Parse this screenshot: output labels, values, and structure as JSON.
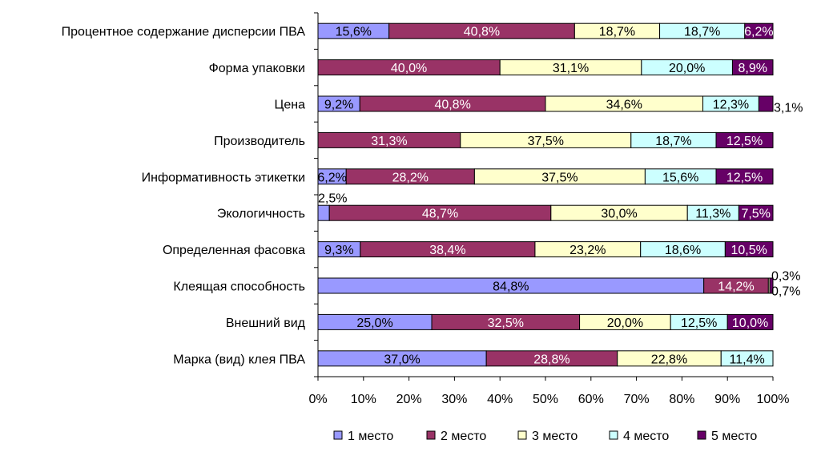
{
  "chart_data": {
    "type": "bar",
    "orientation": "horizontal",
    "stacked": "percent",
    "categories": [
      "Процентное содержание дисперсии ПВА",
      "Форма упаковки",
      "Цена",
      "Производитель",
      "Информативность этикетки",
      "Экологичность",
      "Определенная фасовка",
      "Клеящая способность",
      "Внешний вид",
      "Марка (вид) клея ПВА"
    ],
    "series": [
      {
        "name": "1 место",
        "color": "#9999FF",
        "values": [
          15.6,
          0,
          9.2,
          0,
          6.2,
          2.5,
          9.3,
          84.8,
          25.0,
          37.0
        ]
      },
      {
        "name": "2 место",
        "color": "#993366",
        "values": [
          40.8,
          40.0,
          40.8,
          31.3,
          28.2,
          48.7,
          38.4,
          14.2,
          32.5,
          28.8
        ]
      },
      {
        "name": "3 место",
        "color": "#FFFFCC",
        "values": [
          18.7,
          31.1,
          34.6,
          37.5,
          37.5,
          30.0,
          23.2,
          0.3,
          20.0,
          22.8
        ]
      },
      {
        "name": "4 место",
        "color": "#CCFFFF",
        "values": [
          18.7,
          20.0,
          12.3,
          18.7,
          15.6,
          11.3,
          18.6,
          0,
          12.5,
          11.4
        ]
      },
      {
        "name": "5 место",
        "color": "#660066",
        "values": [
          6.2,
          8.9,
          3.1,
          12.5,
          12.5,
          7.5,
          10.5,
          0.7,
          10.0,
          0
        ]
      }
    ],
    "labels": [
      [
        "15,6%",
        "40,8%",
        "18,7%",
        "18,7%",
        "6,2%"
      ],
      [
        "",
        "40,0%",
        "31,1%",
        "20,0%",
        "8,9%"
      ],
      [
        "9,2%",
        "40,8%",
        "34,6%",
        "12,3%",
        "3,1%"
      ],
      [
        "",
        "31,3%",
        "37,5%",
        "18,7%",
        "12,5%"
      ],
      [
        "6,2%",
        "28,2%",
        "37,5%",
        "15,6%",
        "12,5%"
      ],
      [
        "2,5%",
        "48,7%",
        "30,0%",
        "11,3%",
        "7,5%"
      ],
      [
        "9,3%",
        "38,4%",
        "23,2%",
        "18,6%",
        "10,5%"
      ],
      [
        "84,8%",
        "14,2%",
        "0,3%",
        "",
        "0,7%"
      ],
      [
        "25,0%",
        "32,5%",
        "20,0%",
        "12,5%",
        "10,0%"
      ],
      [
        "37,0%",
        "28,8%",
        "22,8%",
        "11,4%",
        ""
      ]
    ],
    "x_ticks": [
      "0%",
      "10%",
      "20%",
      "30%",
      "40%",
      "50%",
      "60%",
      "70%",
      "80%",
      "90%",
      "100%"
    ],
    "xlim": [
      0,
      100
    ],
    "legend": "bottom",
    "grid": false
  }
}
